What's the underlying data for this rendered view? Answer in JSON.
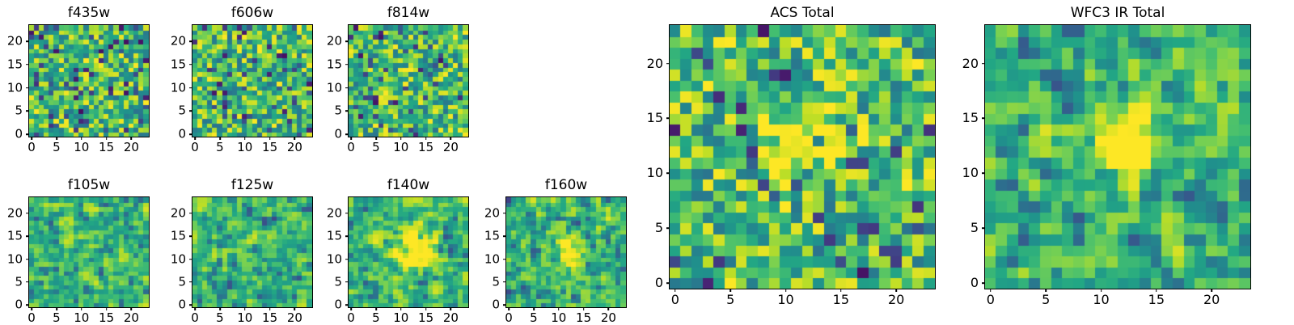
{
  "figure": {
    "background": "#ffffff",
    "spine_color": "#000000"
  },
  "chart_data": {
    "type": "heatmap",
    "colormap": "viridis",
    "colormap_stops": [
      [
        0.0,
        "#440154"
      ],
      [
        0.1,
        "#482374"
      ],
      [
        0.2,
        "#404387"
      ],
      [
        0.3,
        "#345e8d"
      ],
      [
        0.4,
        "#29788e"
      ],
      [
        0.5,
        "#20908c"
      ],
      [
        0.6,
        "#22a784"
      ],
      [
        0.7,
        "#44be70"
      ],
      [
        0.8,
        "#79d151"
      ],
      [
        0.9,
        "#bdde26"
      ],
      [
        1.0,
        "#fde725"
      ]
    ],
    "grid_size": 24,
    "axis_range": [
      -0.5,
      23.5
    ],
    "x_ticks": [
      0,
      5,
      10,
      15,
      20
    ],
    "y_ticks": [
      0,
      5,
      10,
      15,
      20
    ],
    "values_note": "24x24 pixel cutout images of sky noise; values approximated as seeded random noise with optional central source",
    "panels": [
      {
        "title": "f435w",
        "seed": 11,
        "dark_fraction": 0.08,
        "smooth": false,
        "source_blob": null
      },
      {
        "title": "f606w",
        "seed": 22,
        "dark_fraction": 0.08,
        "smooth": false,
        "source_blob": null
      },
      {
        "title": "f814w",
        "seed": 33,
        "dark_fraction": 0.08,
        "smooth": false,
        "source_blob": null
      },
      {
        "title": "f105w",
        "seed": 44,
        "dark_fraction": 0.09,
        "smooth": true,
        "source_blob": null
      },
      {
        "title": "f125w",
        "seed": 55,
        "dark_fraction": 0.09,
        "smooth": true,
        "source_blob": null
      },
      {
        "title": "f140w",
        "seed": 66,
        "dark_fraction": 0.07,
        "smooth": true,
        "source_blob": {
          "cx": 12.5,
          "cy": 12,
          "sigma": 2.8,
          "amp": 0.55
        }
      },
      {
        "title": "f160w",
        "seed": 77,
        "dark_fraction": 0.09,
        "smooth": true,
        "source_blob": {
          "cx": 12,
          "cy": 12,
          "sigma": 2.2,
          "amp": 0.35
        }
      },
      {
        "title": "ACS Total",
        "seed": 88,
        "dark_fraction": 0.07,
        "smooth": false,
        "source_blob": {
          "cx": 12,
          "cy": 13,
          "sigma": 2.5,
          "amp": 0.32
        }
      },
      {
        "title": "WFC3 IR Total",
        "seed": 99,
        "dark_fraction": 0.12,
        "smooth": true,
        "source_blob": {
          "cx": 12,
          "cy": 12.5,
          "sigma": 2.0,
          "amp": 0.7
        }
      }
    ]
  }
}
